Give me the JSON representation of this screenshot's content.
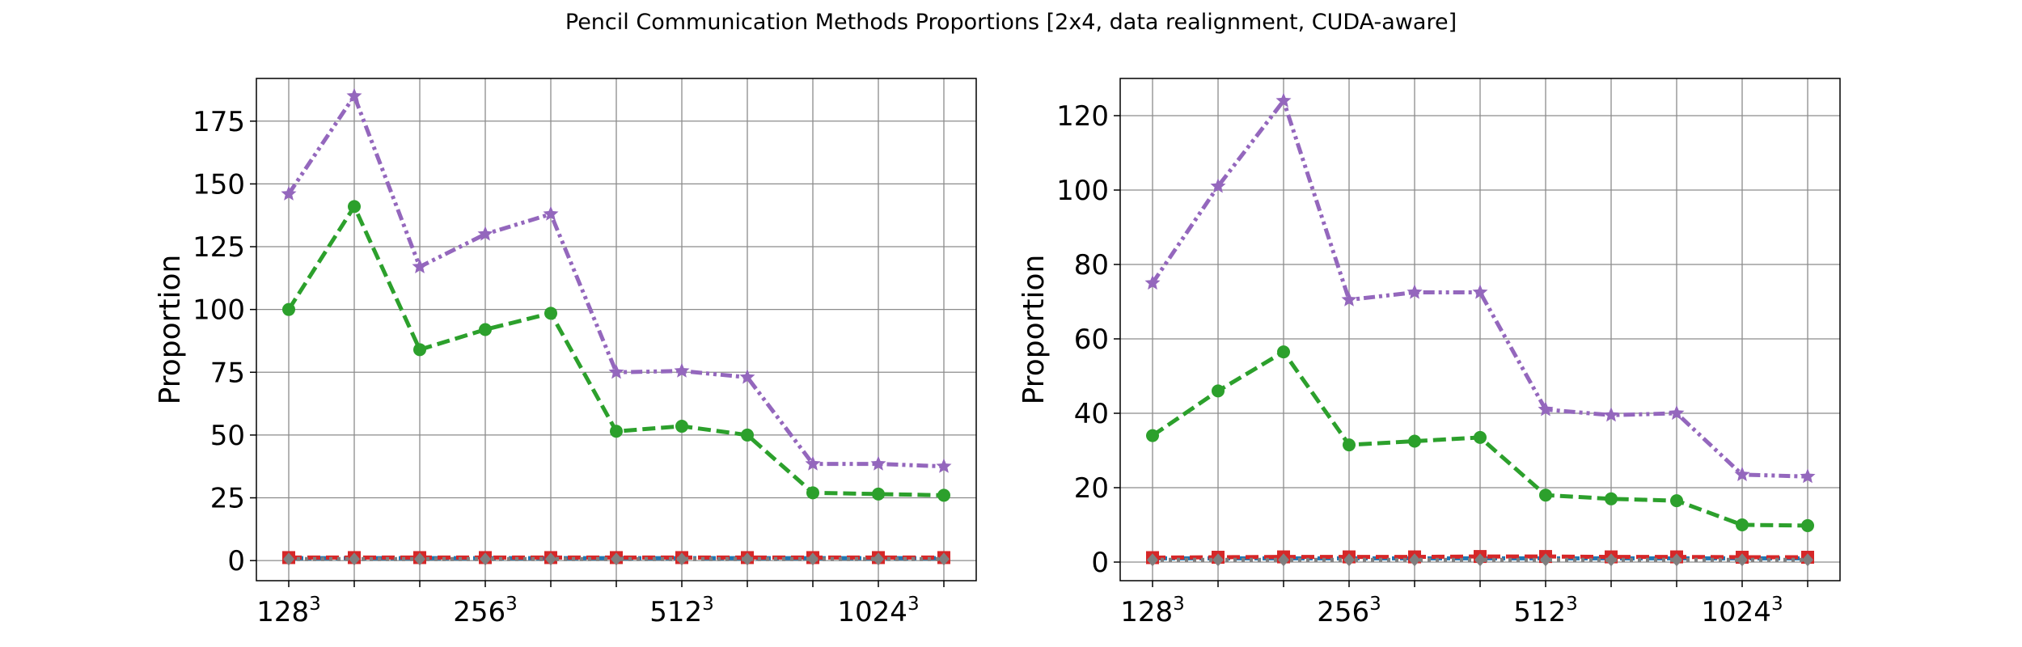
{
  "figure": {
    "title": "Pencil Communication Methods Proportions [2x4, data realignment, CUDA-aware]"
  },
  "chart_data": [
    {
      "type": "line",
      "ylabel": "Proportion",
      "ylim": [
        -8,
        192
      ],
      "yticks": [
        0,
        25,
        50,
        75,
        100,
        125,
        150,
        175
      ],
      "xticks": [
        {
          "base": "128",
          "exp": "3",
          "index": 0
        },
        {
          "base": "256",
          "exp": "3",
          "index": 3
        },
        {
          "base": "512",
          "exp": "3",
          "index": 6
        },
        {
          "base": "1024",
          "exp": "3",
          "index": 9
        }
      ],
      "grid": true,
      "n_points": 11,
      "series": [
        {
          "color": "#1f77b4",
          "style": "dash-dot",
          "marker": "none",
          "values": [
            1,
            1,
            1,
            1,
            1,
            1,
            1,
            1,
            1,
            1,
            1
          ]
        },
        {
          "color": "#d62728",
          "style": "dashed",
          "marker": "square",
          "values": [
            1.2,
            1.2,
            1.2,
            1.2,
            1.2,
            1.2,
            1.2,
            1.2,
            1.2,
            1.2,
            1.2
          ]
        },
        {
          "color": "#2ca02c",
          "style": "dashed",
          "marker": "circle",
          "values": [
            100,
            141,
            84,
            92,
            98.5,
            51.5,
            53.5,
            50,
            27,
            26.5,
            26
          ]
        },
        {
          "color": "#9467bd",
          "style": "dash-dot-dot",
          "marker": "star",
          "values": [
            146,
            185,
            117,
            130,
            138,
            75,
            75.5,
            73,
            38.5,
            38.5,
            37.5
          ]
        },
        {
          "color": "#7f7f7f",
          "style": "dotted",
          "marker": "diamond",
          "values": [
            0.6,
            0.6,
            0.6,
            0.6,
            0.6,
            0.6,
            0.6,
            0.6,
            0.6,
            0.6,
            0.6
          ]
        }
      ]
    },
    {
      "type": "line",
      "ylabel": "Proportion",
      "ylim": [
        -5,
        130
      ],
      "yticks": [
        0,
        20,
        40,
        60,
        80,
        100,
        120
      ],
      "xticks": [
        {
          "base": "128",
          "exp": "3",
          "index": 0
        },
        {
          "base": "256",
          "exp": "3",
          "index": 3
        },
        {
          "base": "512",
          "exp": "3",
          "index": 6
        },
        {
          "base": "1024",
          "exp": "3",
          "index": 9
        }
      ],
      "grid": true,
      "n_points": 11,
      "series": [
        {
          "color": "#1f77b4",
          "style": "dash-dot",
          "marker": "none",
          "values": [
            1,
            1,
            1,
            1,
            1,
            1,
            1,
            1,
            1,
            1,
            1
          ]
        },
        {
          "color": "#d62728",
          "style": "dashed",
          "marker": "square",
          "values": [
            1.2,
            1.3,
            1.4,
            1.4,
            1.4,
            1.5,
            1.5,
            1.4,
            1.4,
            1.3,
            1.3
          ]
        },
        {
          "color": "#2ca02c",
          "style": "dashed",
          "marker": "circle",
          "values": [
            34,
            46,
            56.5,
            31.5,
            32.5,
            33.5,
            18,
            17,
            16.5,
            10,
            9.8
          ]
        },
        {
          "color": "#9467bd",
          "style": "dash-dot-dot",
          "marker": "star",
          "values": [
            75,
            101,
            124,
            70.5,
            72.5,
            72.5,
            41,
            39.5,
            40,
            23.5,
            23
          ]
        },
        {
          "color": "#7f7f7f",
          "style": "dotted",
          "marker": "diamond",
          "values": [
            0.6,
            0.6,
            0.6,
            0.6,
            0.6,
            0.6,
            0.6,
            0.6,
            0.6,
            0.6,
            0.6
          ]
        }
      ]
    }
  ]
}
